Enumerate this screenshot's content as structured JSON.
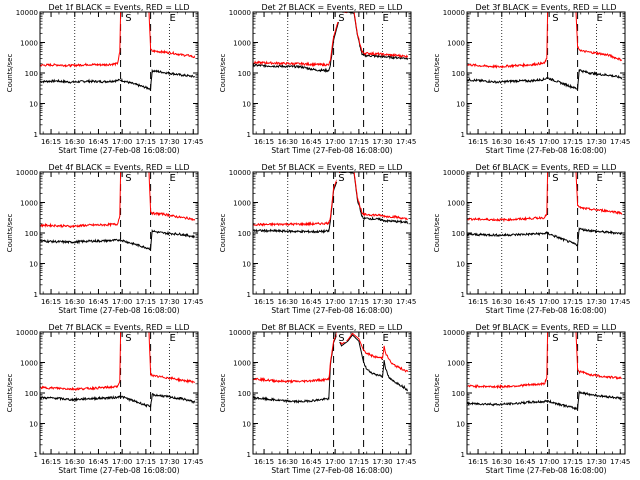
{
  "figure": {
    "background": "#ffffff",
    "axis_color": "#000000",
    "events_color": "#000000",
    "lld_color": "#ff0000",
    "ylabel": "Counts/sec",
    "xlabel": "Start Time (27-Feb-08 16:08:00)",
    "yticks": [
      "1",
      "10",
      "100",
      "1000",
      "10000"
    ],
    "xticks": [
      "16:15",
      "16:30",
      "16:45",
      "17:00",
      "17:15",
      "17:30",
      "17:45"
    ]
  },
  "chart_data": [
    {
      "type": "line",
      "title": "Det 1f BLACK = Events, RED = LLD",
      "detector": "1f",
      "x_unit": "minutes since 16:08:00",
      "xlim": [
        0,
        100
      ],
      "ylim": [
        1,
        10000
      ],
      "yscale": "log",
      "grid": false,
      "markers": [
        {
          "label": "S",
          "x": 56
        },
        {
          "label": "E",
          "x": 84
        }
      ],
      "dotted_lines_x": [
        22,
        82
      ],
      "dashed_lines_x": [
        51,
        70
      ],
      "series": [
        {
          "name": "LLD",
          "color": "red",
          "x": [
            0,
            10,
            20,
            30,
            40,
            49,
            50.5,
            51,
            55,
            69,
            70,
            71,
            73,
            78,
            84,
            90,
            95,
            98
          ],
          "y": [
            180,
            185,
            175,
            190,
            185,
            200,
            480,
            10000,
            10000,
            10000,
            600,
            520,
            520,
            490,
            450,
            390,
            370,
            320
          ]
        },
        {
          "name": "Events",
          "color": "black",
          "x": [
            0,
            10,
            20,
            30,
            40,
            49,
            50.5,
            70,
            71,
            73,
            78,
            84,
            90,
            95,
            98
          ],
          "y": [
            52,
            55,
            50,
            54,
            52,
            56,
            60,
            30,
            120,
            115,
            105,
            95,
            85,
            80,
            75
          ]
        }
      ]
    },
    {
      "type": "line",
      "title": "Det 2f BLACK = Events, RED = LLD",
      "detector": "2f",
      "x_unit": "minutes since 16:08:00",
      "xlim": [
        0,
        100
      ],
      "ylim": [
        1,
        10000
      ],
      "yscale": "log",
      "grid": false,
      "markers": [
        {
          "label": "S",
          "x": 56
        },
        {
          "label": "E",
          "x": 84
        }
      ],
      "dotted_lines_x": [
        22,
        82
      ],
      "dashed_lines_x": [
        51,
        70
      ],
      "series": [
        {
          "name": "LLD",
          "color": "red",
          "x": [
            0,
            10,
            20,
            30,
            40,
            48,
            49,
            51,
            55,
            60,
            64,
            66,
            69,
            70,
            73,
            80,
            84,
            90,
            95,
            98
          ],
          "y": [
            220,
            215,
            205,
            200,
            190,
            185,
            260,
            1500,
            8000,
            10000,
            10000,
            2000,
            500,
            450,
            440,
            420,
            400,
            380,
            360,
            350
          ]
        },
        {
          "name": "Events",
          "color": "black",
          "x": [
            0,
            10,
            20,
            30,
            40,
            48,
            49,
            51,
            55,
            60,
            64,
            66,
            69,
            70,
            73,
            80,
            84,
            90,
            95,
            98
          ],
          "y": [
            180,
            170,
            165,
            160,
            125,
            120,
            180,
            1200,
            7000,
            10000,
            9000,
            1800,
            400,
            380,
            370,
            350,
            340,
            320,
            310,
            300
          ]
        }
      ]
    },
    {
      "type": "line",
      "title": "Det 3f BLACK = Events, RED = LLD",
      "detector": "3f",
      "x_unit": "minutes since 16:08:00",
      "xlim": [
        0,
        100
      ],
      "ylim": [
        1,
        10000
      ],
      "yscale": "log",
      "grid": false,
      "markers": [
        {
          "label": "S",
          "x": 56
        },
        {
          "label": "E",
          "x": 84
        }
      ],
      "dotted_lines_x": [
        22,
        82
      ],
      "dashed_lines_x": [
        51,
        70
      ],
      "series": [
        {
          "name": "LLD",
          "color": "red",
          "x": [
            0,
            10,
            20,
            30,
            40,
            49,
            50.5,
            51,
            55,
            69,
            70,
            71,
            73,
            78,
            84,
            90,
            95,
            98
          ],
          "y": [
            190,
            170,
            160,
            175,
            185,
            210,
            300,
            10000,
            10000,
            10000,
            700,
            600,
            520,
            480,
            430,
            380,
            300,
            270
          ]
        },
        {
          "name": "Events",
          "color": "black",
          "x": [
            0,
            10,
            20,
            30,
            40,
            49,
            50.5,
            70,
            71,
            73,
            78,
            84,
            90,
            95,
            98
          ],
          "y": [
            60,
            55,
            50,
            55,
            55,
            62,
            70,
            30,
            130,
            115,
            100,
            90,
            85,
            75,
            70
          ]
        }
      ]
    },
    {
      "type": "line",
      "title": "Det 4f BLACK = Events, RED = LLD",
      "detector": "4f",
      "x_unit": "minutes since 16:08:00",
      "xlim": [
        0,
        100
      ],
      "ylim": [
        1,
        10000
      ],
      "yscale": "log",
      "grid": false,
      "markers": [
        {
          "label": "S",
          "x": 56
        },
        {
          "label": "E",
          "x": 84
        }
      ],
      "dotted_lines_x": [
        22,
        82
      ],
      "dashed_lines_x": [
        51,
        70
      ],
      "series": [
        {
          "name": "LLD",
          "color": "red",
          "x": [
            0,
            10,
            20,
            30,
            40,
            49,
            50.5,
            51,
            55,
            69,
            70,
            71,
            73,
            78,
            84,
            90,
            95,
            98
          ],
          "y": [
            180,
            175,
            165,
            180,
            185,
            195,
            360,
            10000,
            10000,
            10000,
            500,
            450,
            430,
            420,
            360,
            320,
            300,
            260
          ]
        },
        {
          "name": "Events",
          "color": "black",
          "x": [
            0,
            10,
            20,
            30,
            40,
            49,
            50.5,
            70,
            71,
            73,
            78,
            84,
            90,
            95,
            98
          ],
          "y": [
            55,
            52,
            50,
            54,
            55,
            58,
            60,
            30,
            120,
            110,
            100,
            95,
            90,
            80,
            75
          ]
        }
      ]
    },
    {
      "type": "line",
      "title": "Det 5f BLACK = Events, RED = LLD",
      "detector": "5f",
      "x_unit": "minutes since 16:08:00",
      "xlim": [
        0,
        100
      ],
      "ylim": [
        1,
        10000
      ],
      "yscale": "log",
      "grid": false,
      "markers": [
        {
          "label": "S",
          "x": 56
        },
        {
          "label": "E",
          "x": 84
        }
      ],
      "dotted_lines_x": [
        22,
        82
      ],
      "dashed_lines_x": [
        51,
        70
      ],
      "series": [
        {
          "name": "LLD",
          "color": "red",
          "x": [
            0,
            10,
            20,
            30,
            40,
            48,
            49,
            51,
            55,
            60,
            64,
            66,
            69,
            70,
            73,
            80,
            84,
            90,
            95,
            98
          ],
          "y": [
            190,
            190,
            195,
            195,
            200,
            210,
            330,
            3000,
            10000,
            10000,
            10000,
            1500,
            450,
            400,
            400,
            380,
            350,
            340,
            300,
            280
          ]
        },
        {
          "name": "Events",
          "color": "black",
          "x": [
            0,
            10,
            20,
            30,
            40,
            48,
            49,
            51,
            55,
            60,
            64,
            66,
            69,
            70,
            73,
            80,
            84,
            90,
            95,
            98
          ],
          "y": [
            120,
            118,
            115,
            112,
            110,
            115,
            250,
            2500,
            9000,
            10000,
            9000,
            1300,
            350,
            300,
            300,
            280,
            250,
            240,
            230,
            220
          ]
        }
      ]
    },
    {
      "type": "line",
      "title": "Det 6f BLACK = Events, RED = LLD",
      "detector": "6f",
      "x_unit": "minutes since 16:08:00",
      "xlim": [
        0,
        100
      ],
      "ylim": [
        1,
        10000
      ],
      "yscale": "log",
      "grid": false,
      "markers": [
        {
          "label": "S",
          "x": 56
        },
        {
          "label": "E",
          "x": 84
        }
      ],
      "dotted_lines_x": [
        22,
        82
      ],
      "dashed_lines_x": [
        51,
        70
      ],
      "series": [
        {
          "name": "LLD",
          "color": "red",
          "x": [
            0,
            10,
            20,
            30,
            40,
            49,
            50.5,
            51,
            55,
            69,
            70,
            71,
            73,
            78,
            84,
            90,
            95,
            98
          ],
          "y": [
            290,
            280,
            270,
            280,
            300,
            320,
            420,
            10000,
            10000,
            10000,
            800,
            700,
            650,
            600,
            560,
            520,
            480,
            450
          ]
        },
        {
          "name": "Events",
          "color": "black",
          "x": [
            0,
            10,
            20,
            30,
            40,
            49,
            50.5,
            70,
            71,
            73,
            78,
            84,
            90,
            95,
            98
          ],
          "y": [
            90,
            88,
            85,
            88,
            92,
            96,
            100,
            40,
            140,
            130,
            120,
            110,
            105,
            100,
            95
          ]
        }
      ]
    },
    {
      "type": "line",
      "title": "Det 7f BLACK = Events, RED = LLD",
      "detector": "7f",
      "x_unit": "minutes since 16:08:00",
      "xlim": [
        0,
        100
      ],
      "ylim": [
        1,
        10000
      ],
      "yscale": "log",
      "grid": false,
      "markers": [
        {
          "label": "S",
          "x": 56
        },
        {
          "label": "E",
          "x": 84
        }
      ],
      "dotted_lines_x": [
        22,
        82
      ],
      "dashed_lines_x": [
        51,
        70
      ],
      "series": [
        {
          "name": "LLD",
          "color": "red",
          "x": [
            0,
            10,
            20,
            30,
            40,
            49,
            50.5,
            51,
            55,
            69,
            70,
            71,
            73,
            78,
            84,
            90,
            95,
            98
          ],
          "y": [
            150,
            145,
            135,
            140,
            150,
            160,
            250,
            10000,
            10000,
            10000,
            420,
            380,
            350,
            330,
            300,
            260,
            240,
            230
          ]
        },
        {
          "name": "Events",
          "color": "black",
          "x": [
            0,
            10,
            20,
            30,
            40,
            49,
            50.5,
            70,
            71,
            73,
            78,
            84,
            90,
            95,
            98
          ],
          "y": [
            70,
            68,
            60,
            65,
            68,
            72,
            80,
            35,
            90,
            85,
            80,
            70,
            65,
            55,
            50
          ]
        }
      ]
    },
    {
      "type": "line",
      "title": "Det 8f BLACK = Events, RED = LLD",
      "detector": "8f",
      "x_unit": "minutes since 16:08:00",
      "xlim": [
        0,
        100
      ],
      "ylim": [
        1,
        10000
      ],
      "yscale": "log",
      "grid": false,
      "markers": [
        {
          "label": "S",
          "x": 56
        },
        {
          "label": "E",
          "x": 84
        }
      ],
      "dotted_lines_x": [
        22,
        82
      ],
      "dashed_lines_x": [
        51,
        70
      ],
      "series": [
        {
          "name": "LLD",
          "color": "red",
          "x": [
            0,
            10,
            20,
            30,
            40,
            48,
            49,
            51,
            53,
            56,
            60,
            63,
            67,
            70,
            72,
            74,
            76,
            78,
            80,
            82,
            83,
            84,
            86,
            88,
            92,
            96,
            98
          ],
          "y": [
            300,
            260,
            240,
            240,
            260,
            280,
            1000,
            5000,
            9000,
            4000,
            5500,
            9000,
            6000,
            2500,
            2000,
            1800,
            1600,
            1500,
            1450,
            1400,
            3500,
            2000,
            1300,
            900,
            700,
            560,
            500
          ]
        },
        {
          "name": "Events",
          "color": "black",
          "x": [
            0,
            10,
            20,
            30,
            40,
            48,
            49,
            51,
            53,
            56,
            60,
            63,
            67,
            70,
            72,
            74,
            76,
            78,
            80,
            82,
            83,
            84,
            86,
            88,
            92,
            96,
            98
          ],
          "y": [
            70,
            62,
            55,
            52,
            58,
            65,
            800,
            4500,
            8000,
            3500,
            5000,
            8000,
            5000,
            1000,
            600,
            500,
            440,
            400,
            380,
            350,
            1200,
            600,
            320,
            260,
            200,
            150,
            120
          ]
        }
      ]
    },
    {
      "type": "line",
      "title": "Det 9f BLACK = Events, RED = LLD",
      "detector": "9f",
      "x_unit": "minutes since 16:08:00",
      "xlim": [
        0,
        100
      ],
      "ylim": [
        1,
        10000
      ],
      "yscale": "log",
      "grid": false,
      "markers": [
        {
          "label": "S",
          "x": 56
        },
        {
          "label": "E",
          "x": 84
        }
      ],
      "dotted_lines_x": [
        22,
        82
      ],
      "dashed_lines_x": [
        51,
        70
      ],
      "series": [
        {
          "name": "LLD",
          "color": "red",
          "x": [
            0,
            10,
            20,
            30,
            40,
            49,
            50.5,
            51,
            55,
            69,
            70,
            71,
            73,
            78,
            84,
            90,
            95,
            98
          ],
          "y": [
            170,
            165,
            160,
            170,
            185,
            200,
            320,
            10000,
            10000,
            10000,
            600,
            500,
            480,
            400,
            360,
            330,
            320,
            300
          ]
        },
        {
          "name": "Events",
          "color": "black",
          "x": [
            0,
            10,
            20,
            30,
            40,
            49,
            50.5,
            70,
            71,
            73,
            78,
            84,
            90,
            95,
            98
          ],
          "y": [
            45,
            44,
            42,
            45,
            50,
            52,
            55,
            30,
            110,
            100,
            90,
            80,
            75,
            70,
            65
          ]
        }
      ]
    }
  ]
}
